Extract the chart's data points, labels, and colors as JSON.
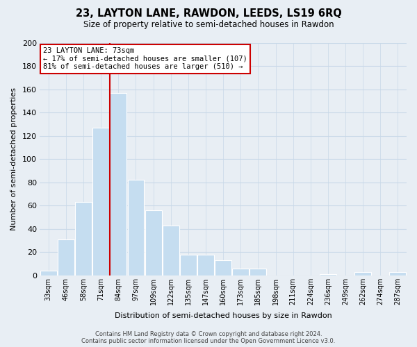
{
  "title": "23, LAYTON LANE, RAWDON, LEEDS, LS19 6RQ",
  "subtitle": "Size of property relative to semi-detached houses in Rawdon",
  "xlabel": "Distribution of semi-detached houses by size in Rawdon",
  "ylabel": "Number of semi-detached properties",
  "bin_labels": [
    "33sqm",
    "46sqm",
    "58sqm",
    "71sqm",
    "84sqm",
    "97sqm",
    "109sqm",
    "122sqm",
    "135sqm",
    "147sqm",
    "160sqm",
    "173sqm",
    "185sqm",
    "198sqm",
    "211sqm",
    "224sqm",
    "236sqm",
    "249sqm",
    "262sqm",
    "274sqm",
    "287sqm"
  ],
  "bar_values": [
    4,
    31,
    63,
    127,
    157,
    82,
    56,
    43,
    18,
    18,
    13,
    6,
    6,
    0,
    0,
    0,
    1,
    0,
    3,
    0,
    3
  ],
  "bar_color": "#c5ddf0",
  "bar_edge_color": "white",
  "grid_color": "#c8d8e8",
  "property_line_color": "#cc0000",
  "annotation_box_edge_color": "#cc0000",
  "annotation_box_face_color": "white",
  "annotation_line1": "23 LAYTON LANE: 73sqm",
  "annotation_line2": "← 17% of semi-detached houses are smaller (107)",
  "annotation_line3": "81% of semi-detached houses are larger (510) →",
  "ylim": [
    0,
    200
  ],
  "yticks": [
    0,
    20,
    40,
    60,
    80,
    100,
    120,
    140,
    160,
    180,
    200
  ],
  "footer_text": "Contains HM Land Registry data © Crown copyright and database right 2024.\nContains public sector information licensed under the Open Government Licence v3.0.",
  "bg_color": "#e8eef4",
  "plot_bg_color": "#e8eef4"
}
